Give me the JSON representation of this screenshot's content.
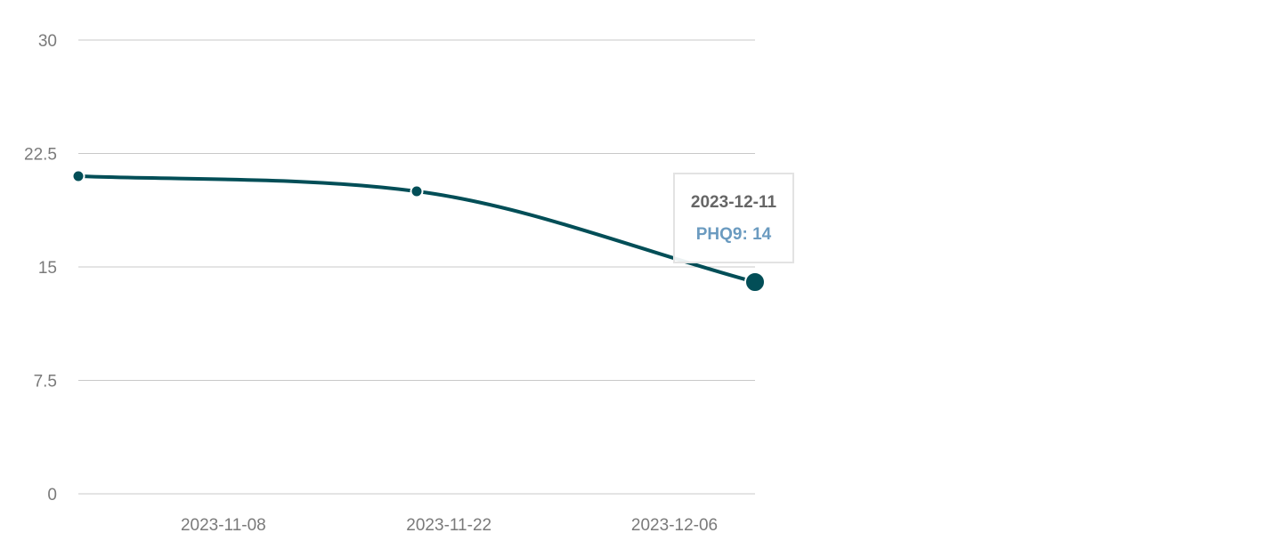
{
  "chart_data": {
    "type": "line",
    "x": [
      "2023-10-30",
      "2023-11-20",
      "2023-12-11"
    ],
    "series": [
      {
        "name": "PHQ9",
        "values": [
          21,
          20,
          14
        ]
      }
    ],
    "ylim": [
      0,
      30
    ],
    "y_ticks": [
      "0",
      "7.5",
      "15",
      "22.5",
      "30"
    ],
    "x_tick_labels": [
      "2023-11-08",
      "2023-11-22",
      "2023-12-06"
    ],
    "x_tick_dates": [
      "2023-11-08",
      "2023-11-22",
      "2023-12-06"
    ],
    "xlim": [
      "2023-10-30",
      "2023-12-11"
    ],
    "grid": true,
    "legend": "none",
    "colors": {
      "line": "#024e57",
      "grid": "#c8c8c8",
      "tick_text": "#7a7a7a",
      "tooltip_value": "#6b9bc0"
    },
    "tooltip": {
      "date": "2023-12-11",
      "series_label": "PHQ9: 14",
      "active_index": 2
    }
  }
}
